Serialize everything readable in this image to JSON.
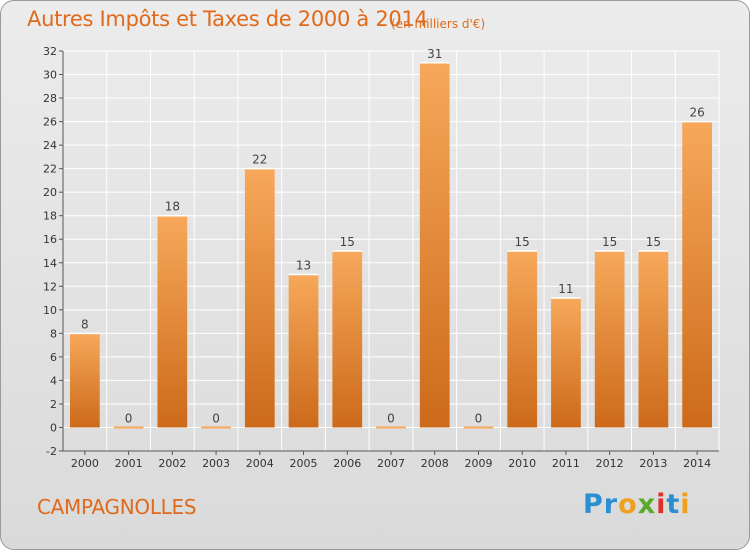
{
  "header": {
    "title": "Autres Impôts et Taxes de 2000 à 2014",
    "subtitle": "(en milliers d'€)"
  },
  "footer": {
    "commune": "CAMPAGNOLLES",
    "brand_letters": [
      "P",
      "r",
      "o",
      "x",
      "i",
      "t",
      "i"
    ]
  },
  "colors": {
    "title": "#e06a1a",
    "bar_top": "#f7a85a",
    "bar_bottom": "#cc6a1a",
    "axis": "#555555",
    "grid": "#ffffff",
    "brand": [
      "#2a8fd0",
      "#2a8fd0",
      "#f0a020",
      "#5aaa2a",
      "#e0302a",
      "#2a8fd0",
      "#f0a020"
    ]
  },
  "chart_data": {
    "type": "bar",
    "categories": [
      "2000",
      "2001",
      "2002",
      "2003",
      "2004",
      "2005",
      "2006",
      "2007",
      "2008",
      "2009",
      "2010",
      "2011",
      "2012",
      "2013",
      "2014"
    ],
    "values": [
      8,
      0,
      18,
      0,
      22,
      13,
      15,
      0,
      31,
      0,
      15,
      11,
      15,
      15,
      26
    ],
    "data_labels": [
      "8",
      "0",
      "18",
      "0",
      "22",
      "13",
      "15",
      "0",
      "31",
      "0",
      "15",
      "11",
      "15",
      "15",
      "26"
    ],
    "title": "Autres Impôts et Taxes de 2000 à 2014",
    "xlabel": "",
    "ylabel": "",
    "ylim": [
      -2,
      32
    ],
    "yticks": [
      -2,
      0,
      2,
      4,
      6,
      8,
      10,
      12,
      14,
      16,
      18,
      20,
      22,
      24,
      26,
      28,
      30,
      32
    ],
    "grid": true,
    "legend": "none"
  }
}
